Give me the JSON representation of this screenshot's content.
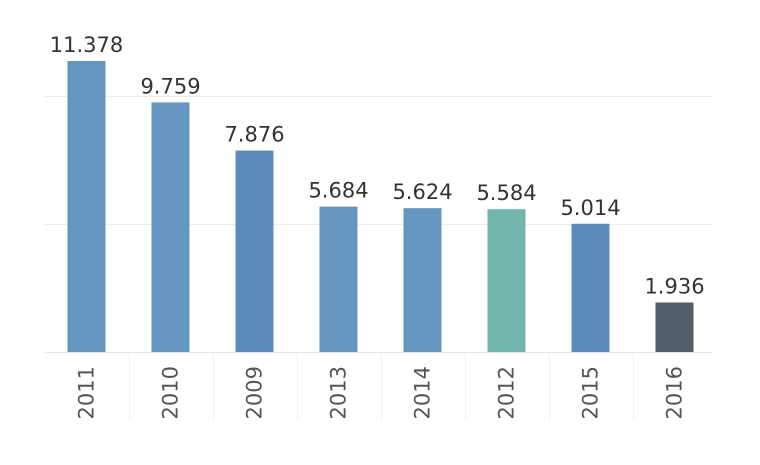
{
  "chart_data": {
    "type": "bar",
    "categories": [
      "2011",
      "2010",
      "2009",
      "2013",
      "2014",
      "2012",
      "2015",
      "2016"
    ],
    "values": [
      11.378,
      9.759,
      7.876,
      5.684,
      5.624,
      5.584,
      5.014,
      1.936
    ],
    "value_labels": [
      "11.378",
      "9.759",
      "7.876",
      "5.684",
      "5.624",
      "5.584",
      "5.014",
      "1.936"
    ],
    "colors": [
      "#6596c2",
      "#6596c2",
      "#5b8cba",
      "#6596c2",
      "#6596c2",
      "#72b5ad",
      "#5b8cba",
      "#545d6a"
    ],
    "ylim": [
      0,
      12
    ],
    "gridlines": [
      5,
      10
    ],
    "grid": true,
    "legend": "none",
    "tick_orientation": "vertical",
    "title": "",
    "xlabel": "",
    "ylabel": ""
  }
}
